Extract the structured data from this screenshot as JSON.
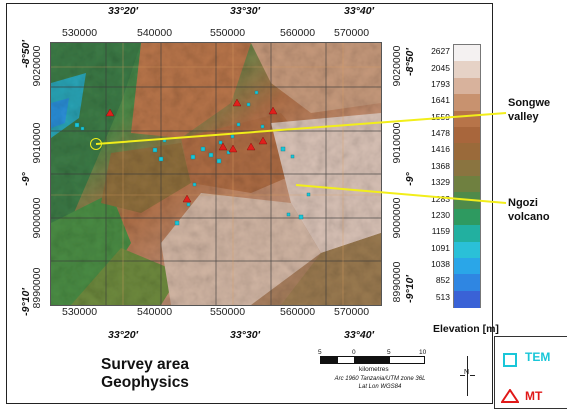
{
  "map": {
    "top_lon_labels": [
      "33°20′",
      "33°30′",
      "33°40′"
    ],
    "bottom_lon_labels": [
      "33°20′",
      "33°30′",
      "33°40′"
    ],
    "top_utm_labels": [
      "530000",
      "540000",
      "550000",
      "560000",
      "570000"
    ],
    "bottom_utm_labels": [
      "530000",
      "540000",
      "550000",
      "560000",
      "570000"
    ],
    "left_lat_labels": [
      "-8°50′",
      "-9°",
      "-9°10′"
    ],
    "right_lat_labels": [
      "-8°50′",
      "-9°",
      "-9°10′"
    ],
    "left_utm_labels": [
      "9020000",
      "9010000",
      "9000000",
      "8990000"
    ],
    "right_utm_labels": [
      "9020000",
      "9010000",
      "9000000",
      "8990000"
    ]
  },
  "legend": {
    "title": "Elevation [m]",
    "values": [
      "2627",
      "2045",
      "1793",
      "1641",
      "1559",
      "1478",
      "1416",
      "1368",
      "1329",
      "1283",
      "1230",
      "1159",
      "1091",
      "1038",
      "852",
      "513"
    ],
    "colors": [
      "#f4f1f1",
      "#e6d2c6",
      "#d8b29c",
      "#c8926f",
      "#b77449",
      "#a8663c",
      "#9a6a3a",
      "#8a7440",
      "#6f8040",
      "#4f8a4a",
      "#2e9a60",
      "#22b0a0",
      "#2ac0d8",
      "#2aa6e8",
      "#2f86e2",
      "#3a62d6"
    ]
  },
  "annotations": {
    "songwe_line1": "Songwe",
    "songwe_line2": "valley",
    "ngozi_line1": "Ngozi",
    "ngozi_line2": "volcano"
  },
  "title": {
    "line1": "Survey area",
    "line2": "Geophysics"
  },
  "scale": {
    "ticks": [
      "5",
      "0",
      "5",
      "10"
    ],
    "unit": "kilometres",
    "caption_line1": "Arc 1960 Tanzania/UTM zone 36L",
    "caption_line2": "Lat Lon WGS84"
  },
  "north": {
    "label": "N"
  },
  "side_legend": {
    "tem_label": "TEM",
    "mt_label": "MT",
    "tem_color": "#19c6d8",
    "mt_color": "#e01818"
  },
  "colors": {
    "tem_marker": "#19c6d8",
    "mt_marker": "#e0201c",
    "callout_line": "#f2ee1a"
  }
}
